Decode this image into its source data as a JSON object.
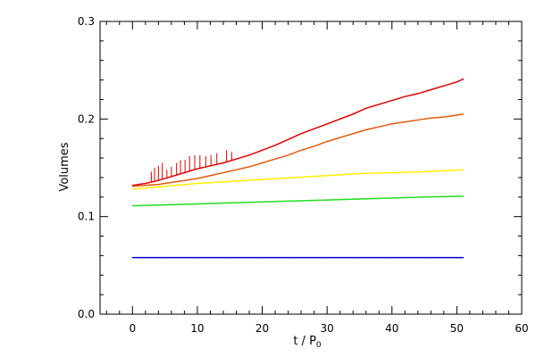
{
  "chart_data": {
    "type": "line",
    "title": "",
    "xlabel": "t / P",
    "xlabel_sub": "0",
    "ylabel": "Volumes",
    "xlim": [
      -5,
      60
    ],
    "ylim": [
      0.0,
      0.3
    ],
    "x_ticks": [
      0,
      10,
      20,
      30,
      40,
      50,
      60
    ],
    "y_ticks": [
      0.0,
      0.1,
      0.2,
      0.3
    ],
    "x_tick_labels": [
      "0",
      "10",
      "20",
      "30",
      "40",
      "50",
      "60"
    ],
    "y_tick_labels": [
      "0.0",
      "0.1",
      "0.2",
      "0.3"
    ],
    "grid": false,
    "legend": "none",
    "series": [
      {
        "color": "#dd0000",
        "x": [
          0,
          2,
          4,
          6,
          8,
          10,
          12,
          14,
          16,
          18,
          20,
          22,
          24,
          26,
          28,
          30,
          32,
          34,
          36,
          38,
          40,
          42,
          44,
          46,
          48,
          50,
          51
        ],
        "y": [
          0.132,
          0.134,
          0.137,
          0.141,
          0.145,
          0.149,
          0.152,
          0.155,
          0.159,
          0.163,
          0.168,
          0.173,
          0.179,
          0.185,
          0.19,
          0.195,
          0.2,
          0.205,
          0.211,
          0.215,
          0.219,
          0.223,
          0.226,
          0.23,
          0.234,
          0.238,
          0.241
        ],
        "spikes_x": [
          2.9,
          3.4,
          4.0,
          4.6,
          5.3,
          6.0,
          6.8,
          7.4,
          8.1,
          8.8,
          9.6,
          10.4,
          11.3,
          12.1,
          13.0,
          14.5,
          15.3
        ],
        "spikes_y": [
          0.146,
          0.15,
          0.152,
          0.155,
          0.148,
          0.151,
          0.155,
          0.158,
          0.158,
          0.162,
          0.163,
          0.163,
          0.162,
          0.163,
          0.165,
          0.168,
          0.166
        ]
      },
      {
        "color": "#e05a10",
        "x": [
          0,
          2,
          4,
          6,
          8,
          10,
          12,
          14,
          16,
          18,
          20,
          22,
          24,
          26,
          28,
          30,
          32,
          34,
          36,
          38,
          40,
          42,
          44,
          46,
          48,
          50,
          51
        ],
        "y": [
          0.131,
          0.132,
          0.133,
          0.135,
          0.137,
          0.139,
          0.142,
          0.145,
          0.148,
          0.151,
          0.155,
          0.159,
          0.163,
          0.168,
          0.172,
          0.177,
          0.181,
          0.185,
          0.189,
          0.192,
          0.195,
          0.197,
          0.199,
          0.201,
          0.202,
          0.204,
          0.205
        ]
      },
      {
        "color": "#ffee00",
        "x": [
          0,
          5,
          10,
          15,
          20,
          25,
          30,
          35,
          40,
          45,
          51
        ],
        "y": [
          0.128,
          0.131,
          0.134,
          0.136,
          0.138,
          0.14,
          0.142,
          0.144,
          0.145,
          0.146,
          0.148
        ]
      },
      {
        "color": "#22dd22",
        "x": [
          0,
          5,
          10,
          15,
          20,
          25,
          30,
          35,
          40,
          45,
          51
        ],
        "y": [
          0.111,
          0.112,
          0.113,
          0.114,
          0.115,
          0.116,
          0.117,
          0.118,
          0.119,
          0.12,
          0.121
        ]
      },
      {
        "color": "#0000cc",
        "x": [
          0,
          5,
          10,
          15,
          20,
          25,
          30,
          35,
          40,
          45,
          51
        ],
        "y": [
          0.058,
          0.058,
          0.058,
          0.058,
          0.058,
          0.058,
          0.058,
          0.058,
          0.058,
          0.058,
          0.058
        ]
      }
    ]
  }
}
